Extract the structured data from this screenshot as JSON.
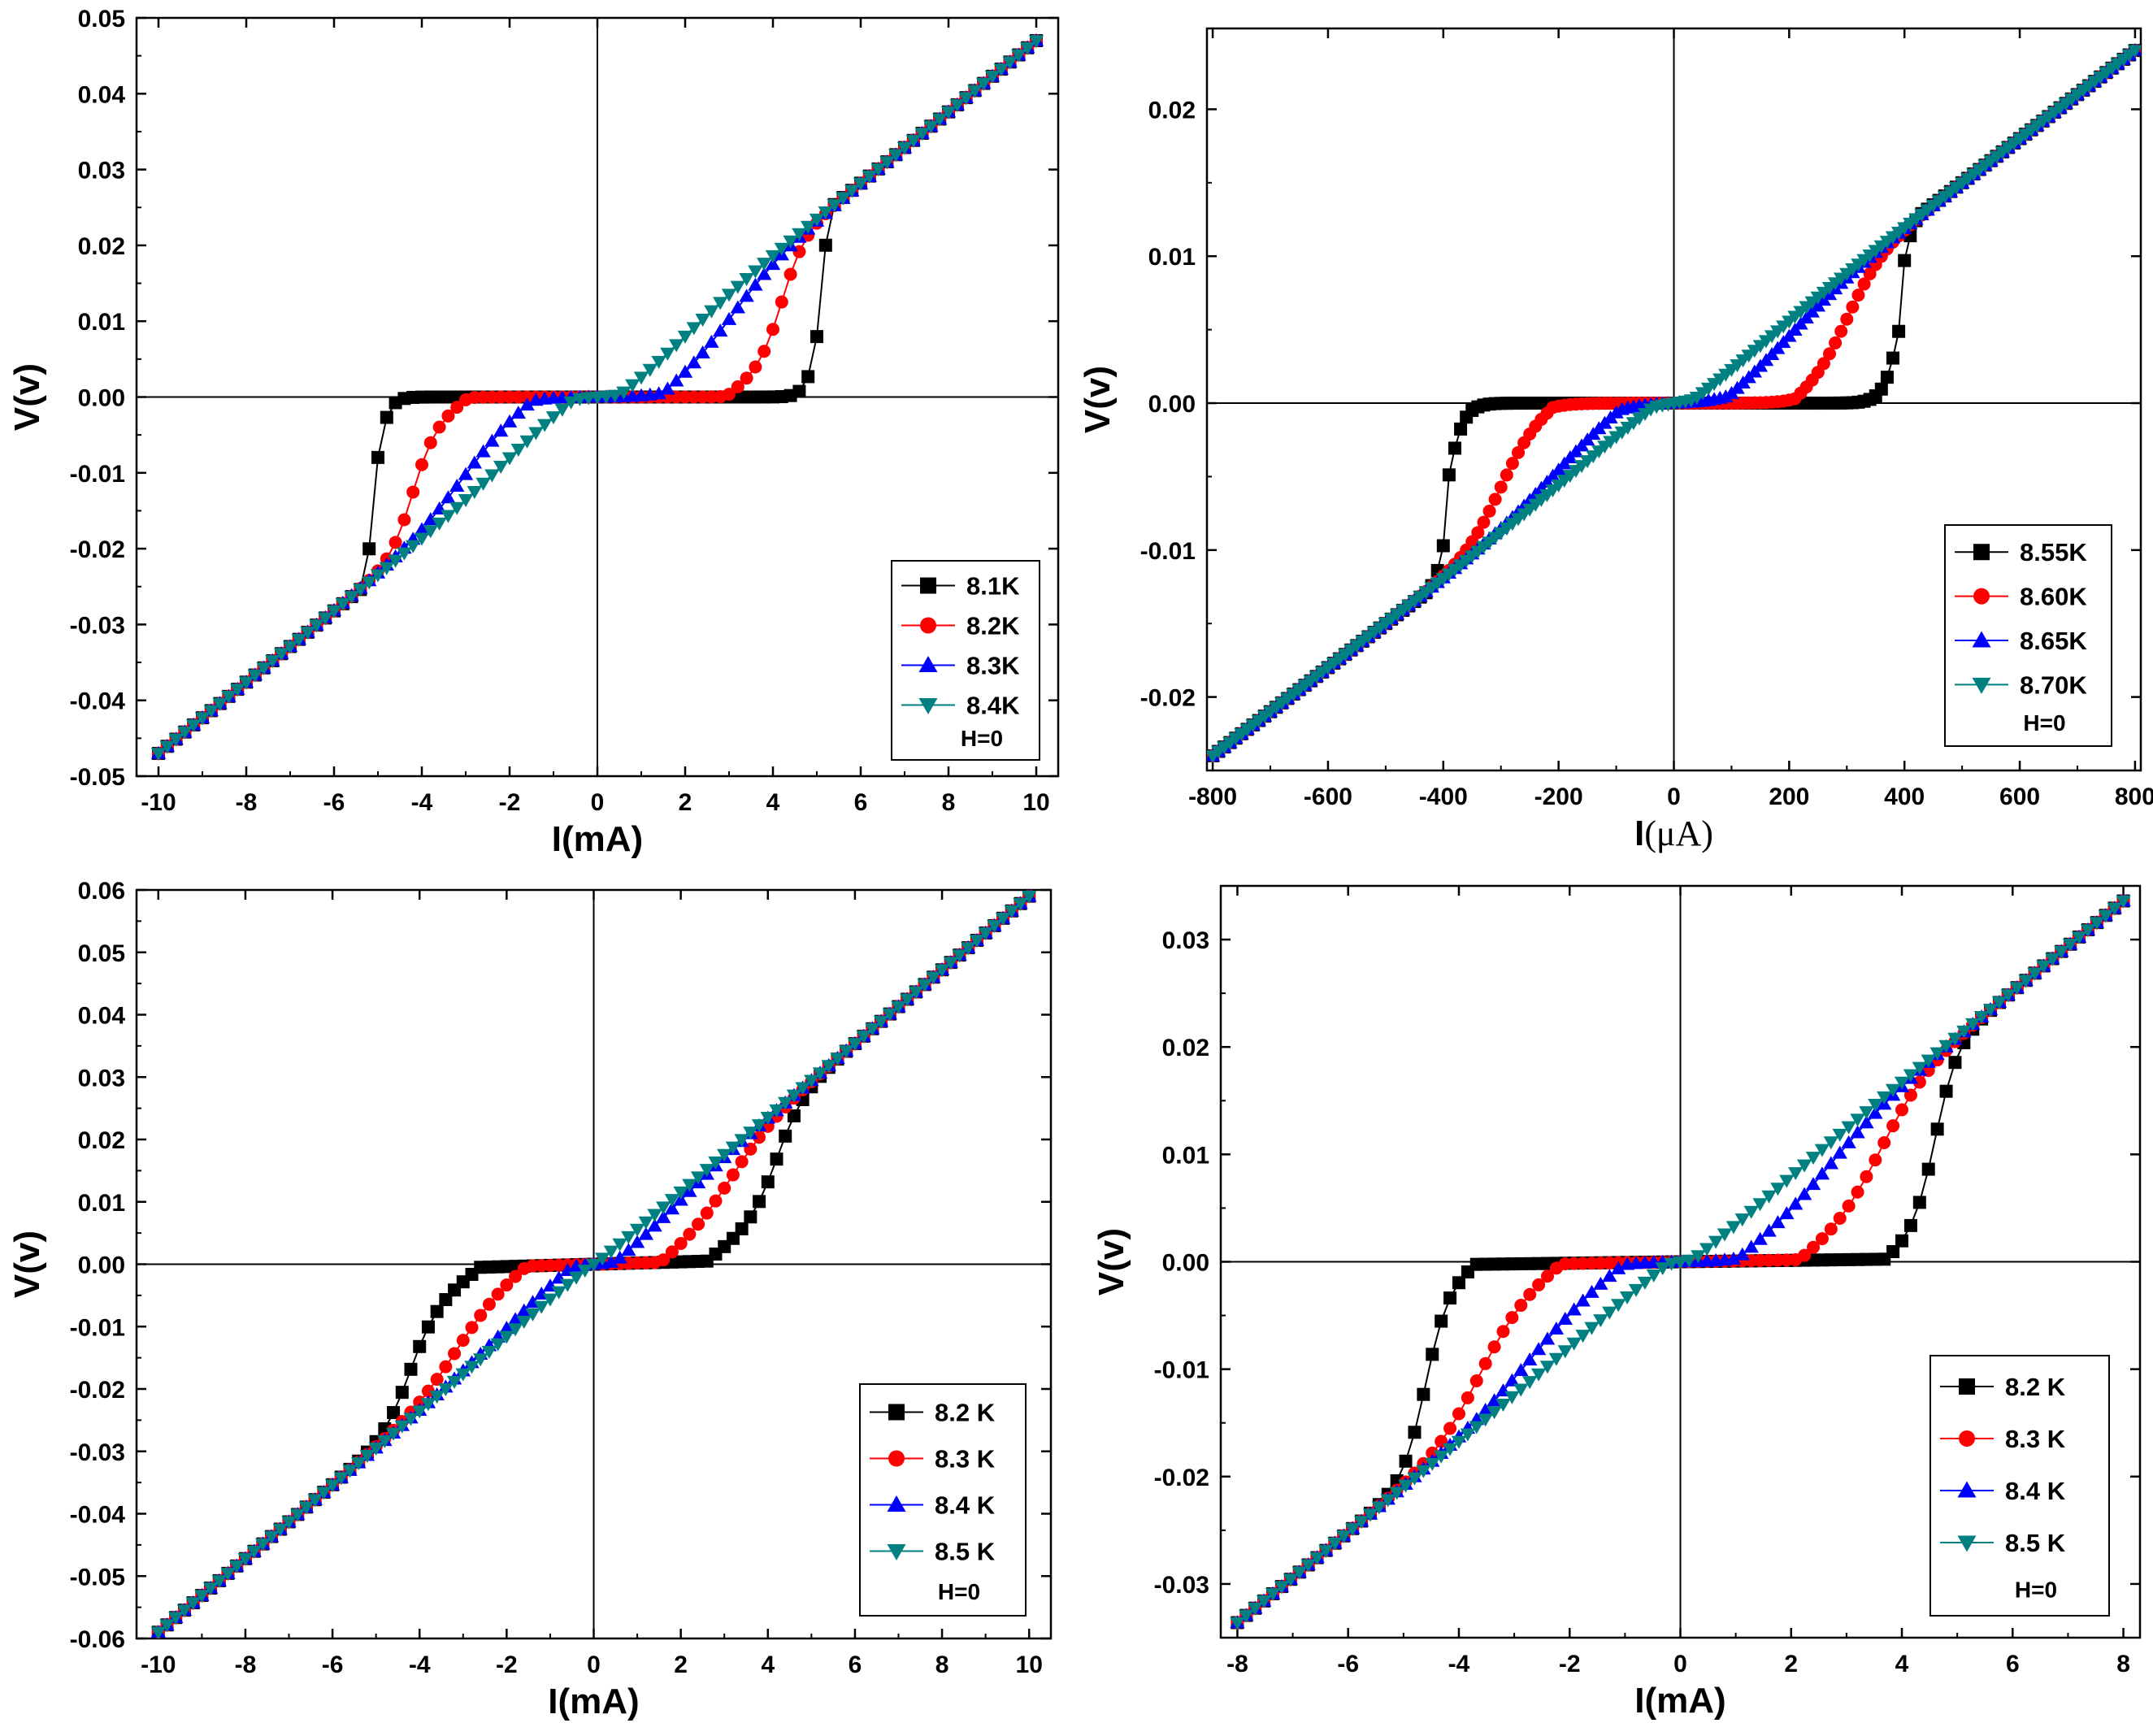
{
  "chart_data": [
    {
      "type": "line",
      "xlabel": "I(mA)",
      "ylabel": "V(v)",
      "xlim": [
        -10.5,
        10.5
      ],
      "ylim": [
        -0.05,
        0.05
      ],
      "xticks": [
        -10,
        -8,
        -6,
        -4,
        -2,
        0,
        2,
        4,
        6,
        8,
        10
      ],
      "yticks": [
        -0.05,
        -0.04,
        -0.03,
        -0.02,
        -0.01,
        0.0,
        0.01,
        0.02,
        0.03,
        0.04,
        0.05
      ],
      "xtick_labels": [
        "-10",
        "-8",
        "-6",
        "-4",
        "-2",
        "0",
        "2",
        "4",
        "6",
        "8",
        "10"
      ],
      "ytick_labels": [
        "-0.05",
        "-0.04",
        "-0.03",
        "-0.02",
        "-0.01",
        "0.00",
        "0.01",
        "0.02",
        "0.03",
        "0.04",
        "0.05"
      ],
      "ydecimals": 2,
      "slope": 0.0047,
      "legend_note": "H=0",
      "legend_position": "lower-right",
      "series": [
        {
          "name": "8.1K",
          "color": "#000000",
          "marker": "square",
          "xmin": -10,
          "xmax": 10,
          "step": 0.2,
          "ic": 5.1,
          "width": 0.15,
          "jump_ratio": 0.2,
          "rounded": 0.05,
          "plateau_v": 0.0
        },
        {
          "name": "8.2K",
          "color": "#ff0000",
          "marker": "circle",
          "xmin": -10,
          "xmax": 10,
          "step": 0.2,
          "ic": 4.2,
          "width": 0.25,
          "jump_ratio": 0.0,
          "rounded": 0.3,
          "plateau_v": 0.0
        },
        {
          "name": "8.3K",
          "color": "#0000ff",
          "marker": "triangle-up",
          "xmin": -10,
          "xmax": 10,
          "step": 0.2,
          "ic": 3.0,
          "width": 0.6,
          "jump_ratio": 0.0,
          "rounded": 0.5,
          "plateau_v": 0.0
        },
        {
          "name": "8.4K",
          "color": "#008080",
          "marker": "triangle-down",
          "xmin": -10,
          "xmax": 10,
          "step": 0.2,
          "ic": 1.8,
          "width": 0.7,
          "jump_ratio": 0.0,
          "rounded": 0.7,
          "plateau_v": 0.0
        }
      ]
    },
    {
      "type": "line",
      "xlabel": "I(μA)",
      "ylabel": "V(v)",
      "xlim": [
        -810,
        810
      ],
      "ylim": [
        -0.025,
        0.0255
      ],
      "xticks": [
        -800,
        -600,
        -400,
        -200,
        0,
        200,
        400,
        600,
        800
      ],
      "yticks": [
        -0.02,
        -0.01,
        0.0,
        0.01,
        0.02
      ],
      "xtick_labels": [
        "-800",
        "-600",
        "-400",
        "-200",
        "0",
        "200",
        "400",
        "600",
        "800"
      ],
      "ytick_labels": [
        "-0.02",
        "-0.01",
        "0.00",
        "0.01",
        "0.02"
      ],
      "ydecimals": 2,
      "slope": 3e-05,
      "legend_note": "H=0",
      "legend_position": "lower-right",
      "series": [
        {
          "name": "8.55K",
          "color": "#000000",
          "marker": "square",
          "xmin": -800,
          "xmax": 800,
          "step": 10,
          "ic": 395,
          "width": 15,
          "jump_ratio": 0.45,
          "rounded": 0.1,
          "plateau_v": 0.0
        },
        {
          "name": "8.60K",
          "color": "#ff0000",
          "marker": "circle",
          "xmin": -800,
          "xmax": 800,
          "step": 10,
          "ic": 300,
          "width": 30,
          "jump_ratio": 0.0,
          "rounded": 0.3,
          "plateau_v": 0.0
        },
        {
          "name": "8.65K",
          "color": "#0000ff",
          "marker": "triangle-up",
          "xmin": -800,
          "xmax": 800,
          "step": 10,
          "ic": 190,
          "width": 60,
          "jump_ratio": 0.0,
          "rounded": 0.5,
          "plateau_v": 0.0
        },
        {
          "name": "8.70K",
          "color": "#008080",
          "marker": "triangle-down",
          "xmin": -800,
          "xmax": 800,
          "step": 10,
          "ic": 120,
          "width": 80,
          "jump_ratio": 0.0,
          "rounded": 0.7,
          "plateau_v": 0.0
        }
      ]
    },
    {
      "type": "line",
      "xlabel": "I(mA)",
      "ylabel": "V(v)",
      "xlim": [
        -10.5,
        10.5
      ],
      "ylim": [
        -0.06,
        0.06
      ],
      "xticks": [
        -10,
        -8,
        -6,
        -4,
        -2,
        0,
        2,
        4,
        6,
        8,
        10
      ],
      "yticks": [
        -0.06,
        -0.05,
        -0.04,
        -0.03,
        -0.02,
        -0.01,
        0.0,
        0.01,
        0.02,
        0.03,
        0.04,
        0.05,
        0.06
      ],
      "xtick_labels": [
        "-10",
        "-8",
        "-6",
        "-4",
        "-2",
        "0",
        "2",
        "4",
        "6",
        "8",
        "10"
      ],
      "ytick_labels": [
        "-0.06",
        "-0.05",
        "-0.04",
        "-0.03",
        "-0.02",
        "-0.01",
        "0.00",
        "0.01",
        "0.02",
        "0.03",
        "0.04",
        "0.05",
        "0.06"
      ],
      "ydecimals": 2,
      "slope": 0.0059,
      "legend_note": "H=0",
      "legend_position": "lower-right",
      "series": [
        {
          "name": "8.2 K",
          "color": "#000000",
          "marker": "square",
          "xmin": -10,
          "xmax": 10,
          "step": 0.2,
          "ic": 4.2,
          "width": 0.3,
          "jump_ratio": 0.0,
          "rounded": 0.4,
          "plateau_v": 0.0008
        },
        {
          "name": "8.3 K",
          "color": "#ff0000",
          "marker": "circle",
          "xmin": -10,
          "xmax": 10,
          "step": 0.2,
          "ic": 3.1,
          "width": 0.5,
          "jump_ratio": 0.0,
          "rounded": 0.5,
          "plateau_v": 0.0006
        },
        {
          "name": "8.4 K",
          "color": "#0000ff",
          "marker": "triangle-up",
          "xmin": -10,
          "xmax": 10,
          "step": 0.2,
          "ic": 1.7,
          "width": 0.7,
          "jump_ratio": 0.0,
          "rounded": 0.7,
          "plateau_v": 0.0004
        },
        {
          "name": "8.5 K",
          "color": "#008080",
          "marker": "triangle-down",
          "xmin": -10,
          "xmax": 10,
          "step": 0.2,
          "ic": 0.5,
          "width": 0.9,
          "jump_ratio": 0.0,
          "rounded": 0.9,
          "plateau_v": 0.0
        }
      ]
    },
    {
      "type": "line",
      "xlabel": "I(mA)",
      "ylabel": "V(v)",
      "xlim": [
        -8.3,
        8.3
      ],
      "ylim": [
        -0.035,
        0.035
      ],
      "xticks": [
        -8,
        -6,
        -4,
        -2,
        0,
        2,
        4,
        6,
        8
      ],
      "yticks": [
        -0.03,
        -0.02,
        -0.01,
        0.0,
        0.01,
        0.02,
        0.03
      ],
      "xtick_labels": [
        "-8",
        "-6",
        "-4",
        "-2",
        "0",
        "2",
        "4",
        "6",
        "8"
      ],
      "ytick_labels": [
        "-0.03",
        "-0.02",
        "-0.01",
        "0.00",
        "0.01",
        "0.02",
        "0.03"
      ],
      "ydecimals": 2,
      "slope": 0.0042,
      "legend_note": "H=0",
      "legend_position": "lower-right",
      "series": [
        {
          "name": "8.2 K",
          "color": "#000000",
          "marker": "square",
          "xmin": -8,
          "xmax": 8,
          "step": 0.16,
          "ic": 4.6,
          "width": 0.2,
          "jump_ratio": 0.0,
          "rounded": 0.2,
          "plateau_v": 0.0003
        },
        {
          "name": "8.3 K",
          "color": "#ff0000",
          "marker": "circle",
          "xmin": -8,
          "xmax": 8,
          "step": 0.16,
          "ic": 3.6,
          "width": 0.4,
          "jump_ratio": 0.0,
          "rounded": 0.4,
          "plateau_v": 0.0003
        },
        {
          "name": "8.4 K",
          "color": "#0000ff",
          "marker": "triangle-up",
          "xmin": -8,
          "xmax": 8,
          "step": 0.16,
          "ic": 2.6,
          "width": 0.6,
          "jump_ratio": 0.0,
          "rounded": 0.6,
          "plateau_v": 0.0002
        },
        {
          "name": "8.5 K",
          "color": "#008080",
          "marker": "triangle-down",
          "xmin": -8,
          "xmax": 8,
          "step": 0.16,
          "ic": 1.2,
          "width": 0.8,
          "jump_ratio": 0.0,
          "rounded": 0.8,
          "plateau_v": 0.0
        }
      ]
    }
  ]
}
